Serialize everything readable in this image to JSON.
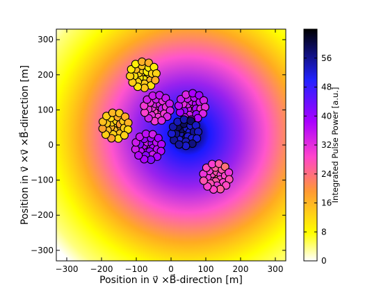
{
  "chart_data": {
    "type": "scatter",
    "title": "",
    "xlabel": "Position in v⃗ ×B⃗-direction [m]",
    "ylabel": "Position in v⃗ ×v⃗ ×B⃗-direction [m]",
    "xlim": [
      -330,
      330
    ],
    "ylim": [
      -330,
      330
    ],
    "xticks": [
      -300,
      -200,
      -100,
      0,
      100,
      200,
      300
    ],
    "yticks": [
      -300,
      -200,
      -100,
      0,
      100,
      200,
      300
    ],
    "grid": false,
    "background_field": {
      "description_source": "interpolated footprint",
      "peak": [
        50,
        30
      ],
      "peak_value": 58
    },
    "colorbar": {
      "label": "Integrated Pulse Power [a.u.]",
      "range": [
        0,
        64
      ],
      "ticks": [
        0,
        8,
        16,
        24,
        32,
        40,
        48,
        56
      ],
      "colors": [
        "#ffffff",
        "#ffff00",
        "#ff9933",
        "#ff44cc",
        "#aa00ff",
        "#2222ff",
        "#000000"
      ]
    },
    "stations": [
      {
        "cx": -80,
        "cy": 200,
        "value": 13
      },
      {
        "cx": -160,
        "cy": 55,
        "value": 15
      },
      {
        "cx": -40,
        "cy": 105,
        "value": 32
      },
      {
        "cx": 60,
        "cy": 110,
        "value": 36
      },
      {
        "cx": 40,
        "cy": 35,
        "value": 56
      },
      {
        "cx": -65,
        "cy": -5,
        "value": 38
      },
      {
        "cx": 130,
        "cy": -90,
        "value": 27
      }
    ]
  }
}
